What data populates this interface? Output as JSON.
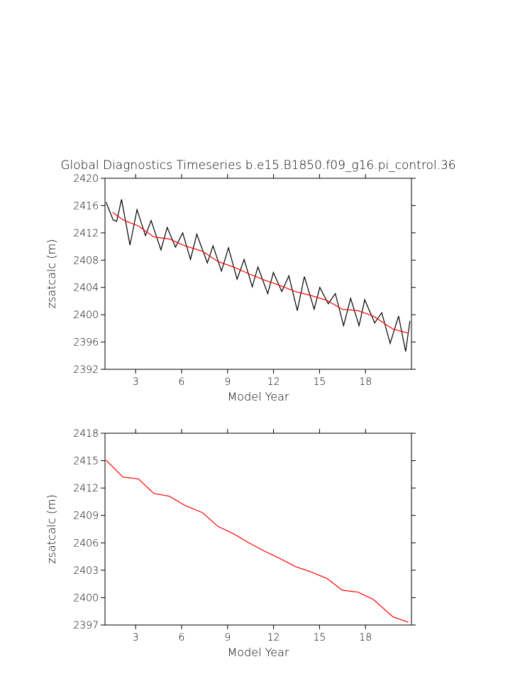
{
  "chart_data": [
    {
      "type": "line",
      "title": "Global Diagnostics Timeseries b.e15.B1850.f09_g16.pi_control.36",
      "xlabel": "Model Year",
      "ylabel": "zsatcalc (m)",
      "xlim": [
        1,
        21
      ],
      "xticks": [
        3,
        6,
        9,
        12,
        15,
        18
      ],
      "ylim": [
        2392,
        2420
      ],
      "yticks": [
        2392,
        2396,
        2400,
        2404,
        2408,
        2412,
        2416,
        2420
      ],
      "series": [
        {
          "color": "#000000",
          "x": [
            1.07,
            1.53,
            1.76,
            2.08,
            2.63,
            3.09,
            3.64,
            4.01,
            4.65,
            5.06,
            5.6,
            6.07,
            6.58,
            6.99,
            7.68,
            8.05,
            8.6,
            9.06,
            9.62,
            10.08,
            10.61,
            10.98,
            11.62,
            11.99,
            12.54,
            13.0,
            13.55,
            14.01,
            14.65,
            15.02,
            15.57,
            16.03,
            16.57,
            17.03,
            17.58,
            17.95,
            18.6,
            19.06,
            19.61,
            20.16,
            20.62,
            20.9
          ],
          "values": [
            2416.5,
            2413.9,
            2413.7,
            2416.9,
            2410.2,
            2415.4,
            2411.6,
            2413.8,
            2409.5,
            2412.8,
            2409.9,
            2412.0,
            2408.1,
            2411.8,
            2407.6,
            2410.1,
            2406.4,
            2409.8,
            2405.2,
            2408.1,
            2404.1,
            2407.0,
            2403.1,
            2406.2,
            2403.4,
            2405.7,
            2400.6,
            2405.6,
            2400.8,
            2404.0,
            2401.6,
            2403.1,
            2398.4,
            2402.4,
            2398.4,
            2402.2,
            2398.8,
            2400.3,
            2395.8,
            2399.8,
            2394.6,
            2399.1
          ]
        },
        {
          "color": "#ff0000",
          "x": [
            1.5,
            2.17,
            3.18,
            4.19,
            5.2,
            6.21,
            7.36,
            8.37,
            9.38,
            10.39,
            11.39,
            12.4,
            13.41,
            14.47,
            15.48,
            16.49,
            17.5,
            18.51,
            19.79,
            20.8
          ],
          "values": [
            2415.0,
            2413.9,
            2413.0,
            2411.4,
            2411.1,
            2410.1,
            2409.3,
            2407.8,
            2407.0,
            2406.0,
            2405.1,
            2404.3,
            2403.4,
            2402.8,
            2402.1,
            2400.8,
            2400.6,
            2399.8,
            2397.9,
            2397.3
          ]
        }
      ]
    },
    {
      "type": "line",
      "xlabel": "Model Year",
      "ylabel": "zsatcalc (m)",
      "xlim": [
        1,
        21
      ],
      "xticks": [
        3,
        6,
        9,
        12,
        15,
        18
      ],
      "ylim": [
        2397,
        2418
      ],
      "yticks": [
        2397,
        2400,
        2403,
        2406,
        2409,
        2412,
        2415,
        2418
      ],
      "series": [
        {
          "color": "#ff0000",
          "x": [
            1.07,
            2.17,
            3.18,
            4.19,
            5.2,
            6.21,
            7.36,
            8.37,
            9.38,
            10.39,
            11.39,
            12.4,
            13.41,
            14.47,
            15.48,
            16.49,
            17.5,
            18.51,
            19.79,
            20.8
          ],
          "values": [
            2415.05,
            2413.2,
            2413.0,
            2411.4,
            2411.1,
            2410.1,
            2409.3,
            2407.8,
            2407.0,
            2406.0,
            2405.1,
            2404.3,
            2403.4,
            2402.8,
            2402.1,
            2400.8,
            2400.6,
            2399.8,
            2397.9,
            2397.3
          ]
        }
      ]
    }
  ]
}
